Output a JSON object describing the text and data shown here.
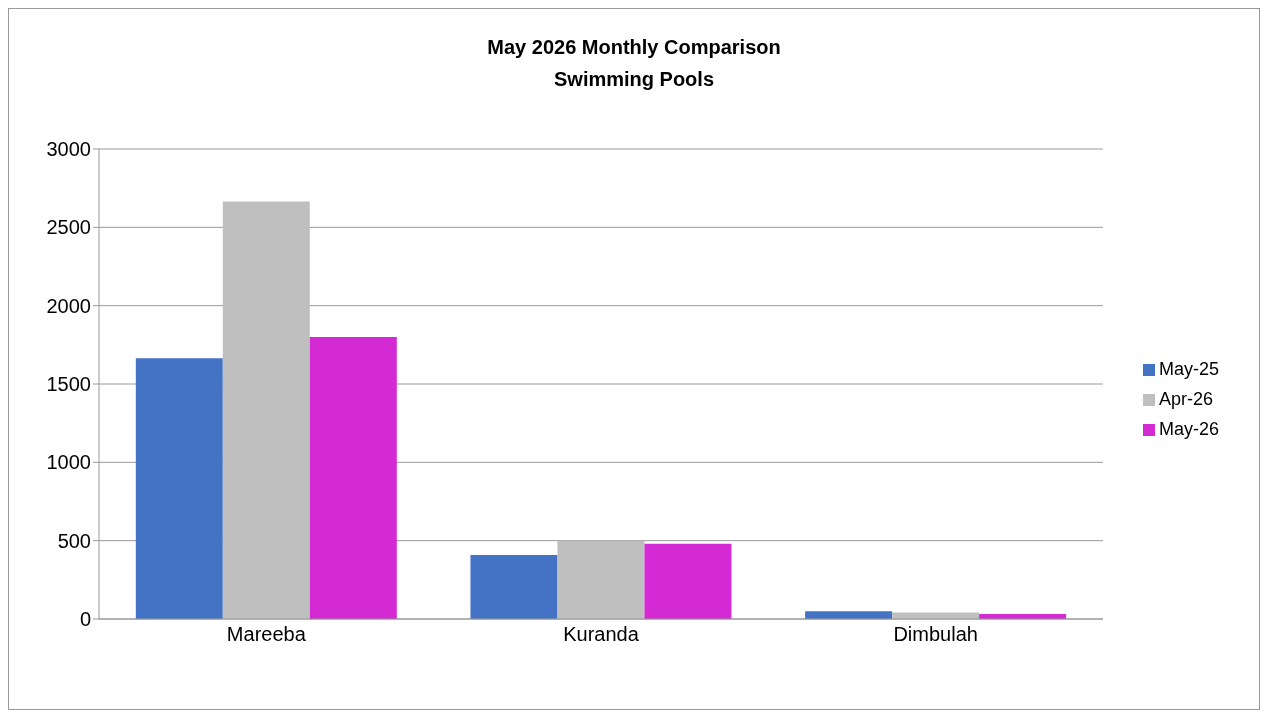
{
  "chart_data": {
    "type": "bar",
    "title": "May 2026 Monthly Comparison\nSwimming Pools",
    "categories": [
      "Mareeba",
      "Kuranda",
      "Dimbulah"
    ],
    "series": [
      {
        "name": "May-25",
        "color": "#4472c4",
        "values": [
          1665,
          408,
          50
        ]
      },
      {
        "name": "Apr-26",
        "color": "#bfbfbf",
        "values": [
          2665,
          500,
          42
        ]
      },
      {
        "name": "May-26",
        "color": "#d42ad4",
        "values": [
          1800,
          480,
          32
        ]
      }
    ],
    "ylim": [
      0,
      3000
    ],
    "yticks": [
      0,
      500,
      1000,
      1500,
      2000,
      2500,
      3000
    ],
    "grid": "y",
    "legend": "right"
  }
}
